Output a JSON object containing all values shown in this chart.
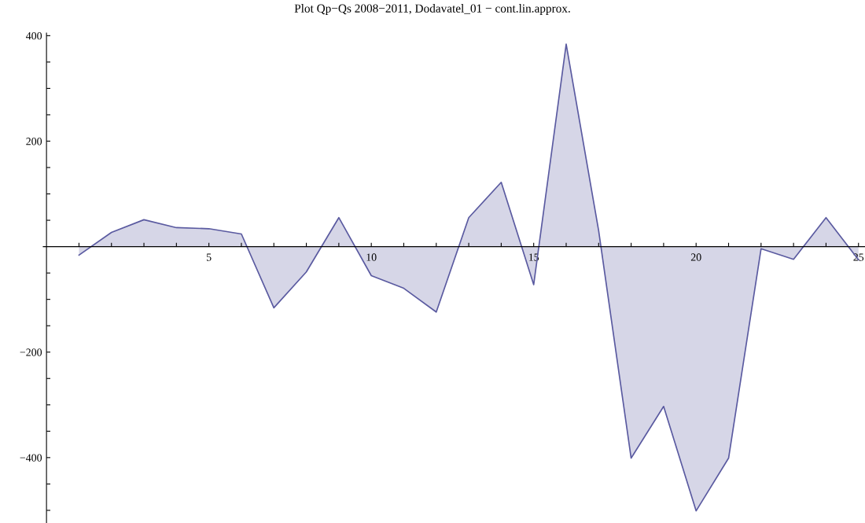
{
  "chart_data": {
    "type": "area",
    "title": "Plot Qp−Qs 2008−2011, Dodavatel_01 − cont.lin.approx.",
    "x": [
      1,
      2,
      3,
      4,
      5,
      6,
      7,
      8,
      9,
      10,
      11,
      12,
      13,
      14,
      15,
      16,
      17,
      18,
      19,
      20,
      21,
      22,
      23,
      24,
      25
    ],
    "series": [
      {
        "color": "#5a5aa0",
        "values": [
          -16,
          27,
          51,
          36,
          34,
          24,
          -116,
          -48,
          55,
          -55,
          -79,
          -124,
          55,
          122,
          -72,
          384,
          30,
          -401,
          -303,
          -501,
          -401,
          -4,
          -24,
          55,
          -25
        ]
      }
    ],
    "xlim": [
      -0.1,
      25.2
    ],
    "ylim": [
      -524,
      405
    ],
    "xticks": [
      {
        "value": 1,
        "label": null
      },
      {
        "value": 2,
        "label": null
      },
      {
        "value": 3,
        "label": null
      },
      {
        "value": 4,
        "label": null
      },
      5,
      {
        "value": 6,
        "label": null
      },
      {
        "value": 7,
        "label": null
      },
      {
        "value": 8,
        "label": null
      },
      {
        "value": 9,
        "label": null
      },
      10,
      {
        "value": 11,
        "label": null
      },
      {
        "value": 12,
        "label": null
      },
      {
        "value": 13,
        "label": null
      },
      {
        "value": 14,
        "label": null
      },
      15,
      {
        "value": 16,
        "label": null
      },
      {
        "value": 17,
        "label": null
      },
      {
        "value": 18,
        "label": null
      },
      {
        "value": 19,
        "label": null
      },
      20,
      {
        "value": 21,
        "label": null
      },
      {
        "value": 22,
        "label": null
      },
      {
        "value": 23,
        "label": null
      },
      {
        "value": 24,
        "label": null
      },
      25
    ],
    "yticks": [
      {
        "value": -500,
        "label": null
      },
      {
        "value": -450,
        "label": null
      },
      {
        "value": -400,
        "label": "−400"
      },
      {
        "value": -350,
        "label": null
      },
      {
        "value": -300,
        "label": null
      },
      {
        "value": -250,
        "label": null
      },
      {
        "value": -200,
        "label": "−200"
      },
      {
        "value": -150,
        "label": null
      },
      {
        "value": -100,
        "label": null
      },
      {
        "value": -50,
        "label": null
      },
      {
        "value": 50,
        "label": null
      },
      {
        "value": 100,
        "label": null
      },
      {
        "value": 150,
        "label": null
      },
      200,
      {
        "value": 250,
        "label": null
      },
      {
        "value": 300,
        "label": null
      },
      {
        "value": 350,
        "label": null
      },
      400
    ],
    "grid": false
  }
}
